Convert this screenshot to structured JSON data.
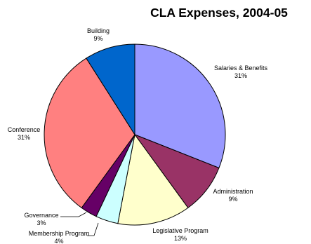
{
  "chart_data": {
    "type": "pie",
    "title": "CLA Expenses, 2004-05",
    "slices": [
      {
        "name": "Salaries & Benefits",
        "value": 31,
        "label": "31%",
        "color": "#9999FF"
      },
      {
        "name": "Administration",
        "value": 9,
        "label": "9%",
        "color": "#993366"
      },
      {
        "name": "Legislative Program",
        "value": 13,
        "label": "13%",
        "color": "#FFFFCC"
      },
      {
        "name": "Membership Program",
        "value": 4,
        "label": "4%",
        "color": "#CCFFFF"
      },
      {
        "name": "Governance",
        "value": 3,
        "label": "3%",
        "color": "#660066"
      },
      {
        "name": "Conference",
        "value": 31,
        "label": "31%",
        "color": "#FF8080"
      },
      {
        "name": "Building",
        "value": 9,
        "label": "9%",
        "color": "#0066CC"
      }
    ]
  }
}
